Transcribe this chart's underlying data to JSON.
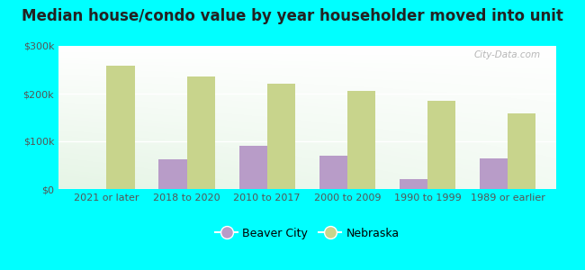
{
  "title": "Median house/condo value by year householder moved into unit",
  "categories": [
    "2021 or later",
    "2018 to 2020",
    "2010 to 2017",
    "2000 to 2009",
    "1990 to 1999",
    "1989 or earlier"
  ],
  "beaver_city": [
    0,
    62000,
    90000,
    70000,
    20000,
    65000
  ],
  "nebraska": [
    258000,
    235000,
    220000,
    205000,
    185000,
    158000
  ],
  "beaver_city_color": "#b89cc8",
  "nebraska_color": "#c8d48c",
  "outer_bg": "#00ffff",
  "ylim": [
    0,
    300000
  ],
  "yticks": [
    0,
    100000,
    200000,
    300000
  ],
  "ytick_labels": [
    "$0",
    "$100k",
    "$200k",
    "$300k"
  ],
  "bar_width": 0.35,
  "legend_labels": [
    "Beaver City",
    "Nebraska"
  ],
  "watermark": "City-Data.com",
  "title_fontsize": 12,
  "tick_fontsize": 8,
  "legend_fontsize": 9
}
